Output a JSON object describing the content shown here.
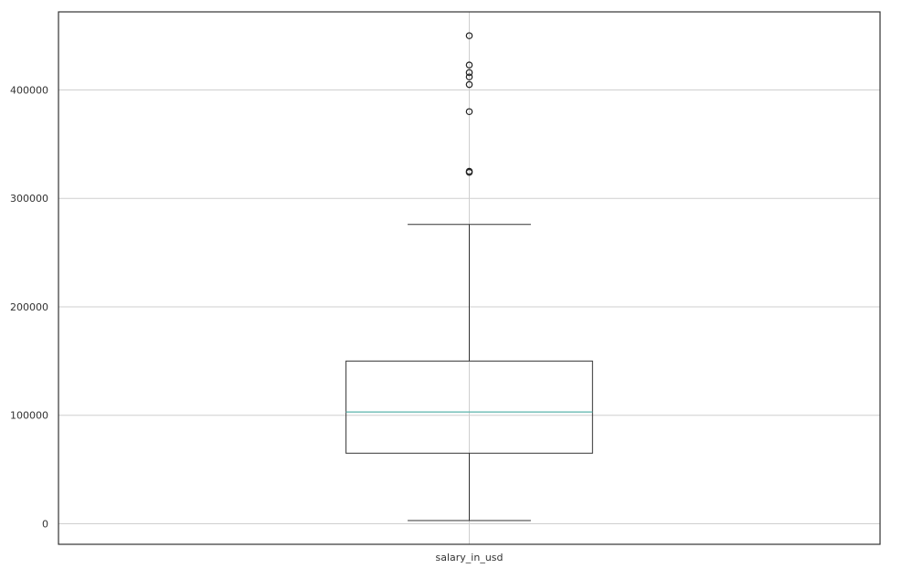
{
  "chart_data": {
    "type": "box",
    "title": "",
    "xlabel": "",
    "ylabel": "",
    "categories": [
      "salary_in_usd"
    ],
    "ylim": [
      -19000,
      472000
    ],
    "yticks": [
      0,
      100000,
      200000,
      300000,
      400000
    ],
    "ytick_labels": [
      "0",
      "100000",
      "200000",
      "300000",
      "400000"
    ],
    "grid": true,
    "boxes": [
      {
        "name": "salary_in_usd",
        "whisker_low": 2900,
        "q1": 65000,
        "median": 103000,
        "q3": 150000,
        "whisker_high": 276000,
        "outliers": [
          324000,
          325000,
          380000,
          405000,
          412000,
          416000,
          423000,
          450000
        ]
      }
    ],
    "colors": {
      "box": "#333333",
      "median": "#5ab4ac",
      "grid": "#cfcfcf",
      "frame": "#333333"
    }
  }
}
